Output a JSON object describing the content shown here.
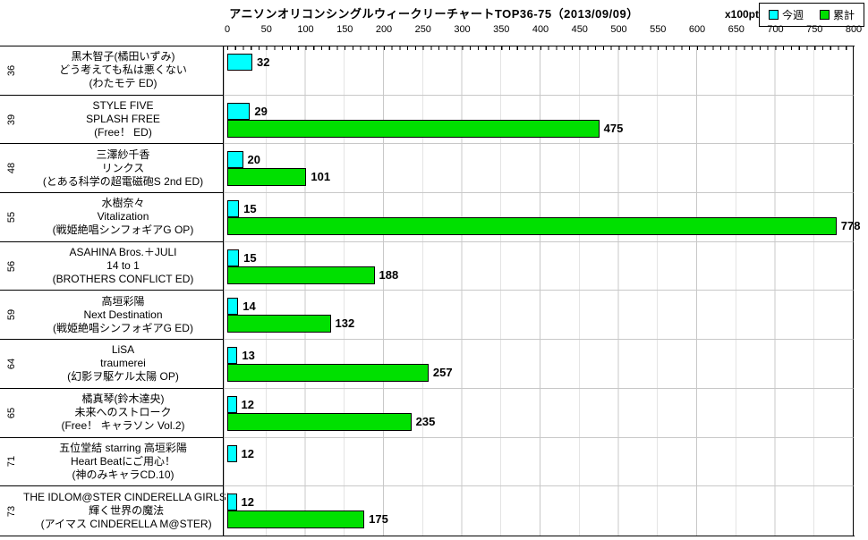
{
  "title": "アニソンオリコンシングルウィークリーチャートTOP36-75（2013/09/09）",
  "unit_label": "x100pt",
  "colors": {
    "this_week": "#00FFFF",
    "cumulative": "#00E000",
    "gridline": "#C8C8C8"
  },
  "chart_data": {
    "type": "bar",
    "orientation": "horizontal",
    "title": "アニソンオリコンシングルウィークリーチャートTOP36-75（2013/09/09）",
    "value_unit": "x100pt",
    "xlim": [
      0,
      800
    ],
    "grid": "vertical",
    "legend_position": "top-right",
    "axis": {
      "min": 0,
      "max": 800,
      "step": 50,
      "ticks": [
        0,
        50,
        100,
        150,
        200,
        250,
        300,
        350,
        400,
        450,
        500,
        550,
        600,
        650,
        700,
        750,
        800
      ]
    },
    "series": [
      {
        "name": "今週",
        "color": "#00FFFF",
        "key": "week"
      },
      {
        "name": "累計",
        "color": "#00E000",
        "key": "total"
      }
    ],
    "rows": [
      {
        "rank": 36,
        "artist": "黒木智子(橘田いずみ)",
        "song": "どう考えても私は悪くない",
        "note": "(わたモテ ED)",
        "week": 32,
        "total": null
      },
      {
        "rank": 39,
        "artist": "STYLE FIVE",
        "song": "SPLASH FREE",
        "note": "(Free！ ED)",
        "week": 29,
        "total": 475
      },
      {
        "rank": 48,
        "artist": "三澤紗千香",
        "song": "リンクス",
        "note": "(とある科学の超電磁砲S 2nd ED)",
        "week": 20,
        "total": 101
      },
      {
        "rank": 55,
        "artist": "水樹奈々",
        "song": "Vitalization",
        "note": "(戦姫絶唱シンフォギアG OP)",
        "week": 15,
        "total": 778
      },
      {
        "rank": 56,
        "artist": "ASAHINA Bros.＋JULI",
        "song": "14 to 1",
        "note": "(BROTHERS CONFLICT ED)",
        "week": 15,
        "total": 188
      },
      {
        "rank": 59,
        "artist": "高垣彩陽",
        "song": "Next Destination",
        "note": "(戦姫絶唱シンフォギアG ED)",
        "week": 14,
        "total": 132
      },
      {
        "rank": 64,
        "artist": "LiSA",
        "song": "traumerei",
        "note": "(幻影ヲ駆ケル太陽 OP)",
        "week": 13,
        "total": 257
      },
      {
        "rank": 65,
        "artist": "橘真琴(鈴木達央)",
        "song": "未来へのストローク",
        "note": "(Free！ キャラソン Vol.2)",
        "week": 12,
        "total": 235
      },
      {
        "rank": 71,
        "artist": "五位堂結 starring 高垣彩陽",
        "song": "Heart Beatにご用心！",
        "note": "(神のみキャラCD.10)",
        "week": 12,
        "total": null
      },
      {
        "rank": 73,
        "artist": "THE IDLOM@STER CINDERELLA GIRLS!",
        "song": "輝く世界の魔法",
        "note": "(アイマス CINDERELLA M@STER)",
        "week": 12,
        "total": 175
      }
    ]
  }
}
